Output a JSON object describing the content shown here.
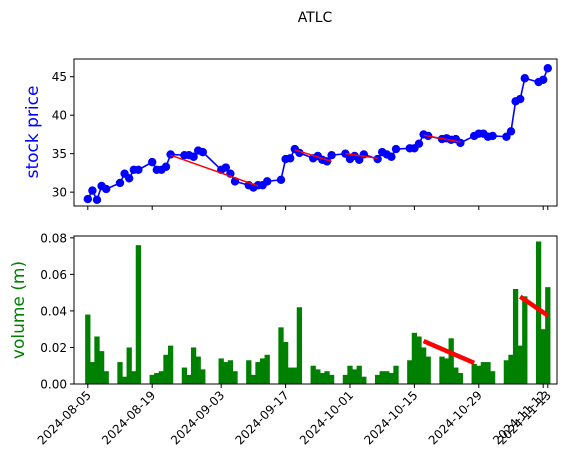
{
  "chart_data": [
    {
      "type": "line",
      "title": "ATLC",
      "ylabel": "stock price",
      "ylabel_color": "#0000ff",
      "xlabel": "",
      "series_color": "#0000ff",
      "trend_color": "#ff0000",
      "ylim": [
        28.2,
        47.3
      ],
      "yticks": [
        30,
        35,
        40,
        45
      ],
      "xlim": [
        "2024-08-02",
        "2024-11-15"
      ],
      "points": [
        [
          "2024-08-05",
          29.1
        ],
        [
          "2024-08-06",
          30.2
        ],
        [
          "2024-08-07",
          29.0
        ],
        [
          "2024-08-08",
          30.8
        ],
        [
          "2024-08-09",
          30.4
        ],
        [
          "2024-08-12",
          31.2
        ],
        [
          "2024-08-13",
          32.4
        ],
        [
          "2024-08-14",
          31.8
        ],
        [
          "2024-08-15",
          32.9
        ],
        [
          "2024-08-16",
          32.9
        ],
        [
          "2024-08-19",
          33.9
        ],
        [
          "2024-08-20",
          32.9
        ],
        [
          "2024-08-21",
          32.9
        ],
        [
          "2024-08-22",
          33.3
        ],
        [
          "2024-08-23",
          34.9
        ],
        [
          "2024-08-26",
          34.8
        ],
        [
          "2024-08-27",
          34.8
        ],
        [
          "2024-08-28",
          34.6
        ],
        [
          "2024-08-29",
          35.4
        ],
        [
          "2024-08-30",
          35.2
        ],
        [
          "2024-09-03",
          32.9
        ],
        [
          "2024-09-04",
          33.2
        ],
        [
          "2024-09-05",
          32.4
        ],
        [
          "2024-09-06",
          31.4
        ],
        [
          "2024-09-09",
          30.9
        ],
        [
          "2024-09-10",
          30.6
        ],
        [
          "2024-09-11",
          30.9
        ],
        [
          "2024-09-12",
          30.9
        ],
        [
          "2024-09-13",
          31.4
        ],
        [
          "2024-09-16",
          31.6
        ],
        [
          "2024-09-17",
          34.3
        ],
        [
          "2024-09-18",
          34.4
        ],
        [
          "2024-09-19",
          35.6
        ],
        [
          "2024-09-20",
          35.1
        ],
        [
          "2024-09-23",
          34.4
        ],
        [
          "2024-09-24",
          34.7
        ],
        [
          "2024-09-25",
          34.2
        ],
        [
          "2024-09-26",
          34.0
        ],
        [
          "2024-09-27",
          34.8
        ],
        [
          "2024-09-30",
          35.0
        ],
        [
          "2024-10-01",
          34.3
        ],
        [
          "2024-10-02",
          34.7
        ],
        [
          "2024-10-03",
          34.2
        ],
        [
          "2024-10-04",
          34.9
        ],
        [
          "2024-10-07",
          34.3
        ],
        [
          "2024-10-08",
          35.2
        ],
        [
          "2024-10-09",
          34.9
        ],
        [
          "2024-10-10",
          34.6
        ],
        [
          "2024-10-11",
          35.6
        ],
        [
          "2024-10-14",
          35.7
        ],
        [
          "2024-10-15",
          35.7
        ],
        [
          "2024-10-16",
          36.3
        ],
        [
          "2024-10-17",
          37.5
        ],
        [
          "2024-10-18",
          37.3
        ],
        [
          "2024-10-21",
          36.9
        ],
        [
          "2024-10-22",
          37.0
        ],
        [
          "2024-10-23",
          36.8
        ],
        [
          "2024-10-24",
          36.9
        ],
        [
          "2024-10-25",
          36.4
        ],
        [
          "2024-10-28",
          37.3
        ],
        [
          "2024-10-29",
          37.6
        ],
        [
          "2024-10-30",
          37.6
        ],
        [
          "2024-10-31",
          37.2
        ],
        [
          "2024-11-01",
          37.3
        ],
        [
          "2024-11-04",
          37.2
        ],
        [
          "2024-11-05",
          37.9
        ],
        [
          "2024-11-06",
          41.8
        ],
        [
          "2024-11-07",
          42.1
        ],
        [
          "2024-11-08",
          44.8
        ],
        [
          "2024-11-11",
          44.3
        ],
        [
          "2024-11-12",
          44.6
        ],
        [
          "2024-11-13",
          46.1
        ]
      ],
      "trend_segments": [
        [
          [
            "2024-08-23",
            34.8
          ],
          [
            "2024-09-11",
            30.8
          ]
        ],
        [
          [
            "2024-09-19",
            35.5
          ],
          [
            "2024-09-27",
            34.0
          ]
        ],
        [
          [
            "2024-09-30",
            35.0
          ],
          [
            "2024-10-07",
            34.4
          ]
        ],
        [
          [
            "2024-10-17",
            37.4
          ],
          [
            "2024-10-25",
            36.5
          ]
        ]
      ]
    },
    {
      "type": "bar",
      "ylabel": "volume (m)",
      "ylabel_color": "#008000",
      "xlabel": "",
      "bar_color": "#008000",
      "trend_color": "#ff0000",
      "ylim": [
        0,
        0.081
      ],
      "yticks": [
        "0.00",
        "0.02",
        "0.04",
        "0.06",
        "0.08"
      ],
      "ytick_values": [
        0,
        0.02,
        0.04,
        0.06,
        0.08
      ],
      "xlim": [
        "2024-08-02",
        "2024-11-15"
      ],
      "xticks": [
        "2024-08-05",
        "2024-08-19",
        "2024-09-03",
        "2024-09-17",
        "2024-10-01",
        "2024-10-15",
        "2024-10-29",
        "2024-11-12",
        "2024-11-13"
      ],
      "bars": [
        [
          "2024-08-05",
          0.038
        ],
        [
          "2024-08-06",
          0.012
        ],
        [
          "2024-08-07",
          0.026
        ],
        [
          "2024-08-08",
          0.018
        ],
        [
          "2024-08-09",
          0.007
        ],
        [
          "2024-08-12",
          0.012
        ],
        [
          "2024-08-13",
          0.004
        ],
        [
          "2024-08-14",
          0.02
        ],
        [
          "2024-08-15",
          0.007
        ],
        [
          "2024-08-16",
          0.076
        ],
        [
          "2024-08-19",
          0.005
        ],
        [
          "2024-08-20",
          0.006
        ],
        [
          "2024-08-21",
          0.007
        ],
        [
          "2024-08-22",
          0.016
        ],
        [
          "2024-08-23",
          0.021
        ],
        [
          "2024-08-26",
          0.009
        ],
        [
          "2024-08-27",
          0.005
        ],
        [
          "2024-08-28",
          0.02
        ],
        [
          "2024-08-29",
          0.015
        ],
        [
          "2024-08-30",
          0.008
        ],
        [
          "2024-09-03",
          0.014
        ],
        [
          "2024-09-04",
          0.012
        ],
        [
          "2024-09-05",
          0.013
        ],
        [
          "2024-09-06",
          0.007
        ],
        [
          "2024-09-09",
          0.013
        ],
        [
          "2024-09-10",
          0.005
        ],
        [
          "2024-09-11",
          0.012
        ],
        [
          "2024-09-12",
          0.014
        ],
        [
          "2024-09-13",
          0.016
        ],
        [
          "2024-09-16",
          0.031
        ],
        [
          "2024-09-17",
          0.023
        ],
        [
          "2024-09-18",
          0.009
        ],
        [
          "2024-09-19",
          0.009
        ],
        [
          "2024-09-20",
          0.042
        ],
        [
          "2024-09-23",
          0.01
        ],
        [
          "2024-09-24",
          0.008
        ],
        [
          "2024-09-25",
          0.006
        ],
        [
          "2024-09-26",
          0.007
        ],
        [
          "2024-09-27",
          0.005
        ],
        [
          "2024-09-30",
          0.005
        ],
        [
          "2024-10-01",
          0.01
        ],
        [
          "2024-10-02",
          0.008
        ],
        [
          "2024-10-03",
          0.01
        ],
        [
          "2024-10-04",
          0.004
        ],
        [
          "2024-10-07",
          0.005
        ],
        [
          "2024-10-08",
          0.007
        ],
        [
          "2024-10-09",
          0.007
        ],
        [
          "2024-10-10",
          0.006
        ],
        [
          "2024-10-11",
          0.01
        ],
        [
          "2024-10-14",
          0.013
        ],
        [
          "2024-10-15",
          0.028
        ],
        [
          "2024-10-16",
          0.026
        ],
        [
          "2024-10-17",
          0.02
        ],
        [
          "2024-10-18",
          0.015
        ],
        [
          "2024-10-21",
          0.015
        ],
        [
          "2024-10-22",
          0.014
        ],
        [
          "2024-10-23",
          0.025
        ],
        [
          "2024-10-24",
          0.009
        ],
        [
          "2024-10-25",
          0.006
        ],
        [
          "2024-10-28",
          0.011
        ],
        [
          "2024-10-29",
          0.01
        ],
        [
          "2024-10-30",
          0.012
        ],
        [
          "2024-10-31",
          0.012
        ],
        [
          "2024-11-01",
          0.007
        ],
        [
          "2024-11-04",
          0.013
        ],
        [
          "2024-11-05",
          0.016
        ],
        [
          "2024-11-06",
          0.052
        ],
        [
          "2024-11-07",
          0.021
        ],
        [
          "2024-11-08",
          0.048
        ],
        [
          "2024-11-11",
          0.078
        ],
        [
          "2024-11-12",
          0.03
        ],
        [
          "2024-11-13",
          0.053
        ]
      ],
      "trend_segments": [
        [
          [
            "2024-10-17",
            0.0235
          ],
          [
            "2024-10-28",
            0.0115
          ]
        ],
        [
          [
            "2024-11-07",
            0.0478
          ],
          [
            "2024-11-13",
            0.0375
          ]
        ]
      ]
    }
  ]
}
